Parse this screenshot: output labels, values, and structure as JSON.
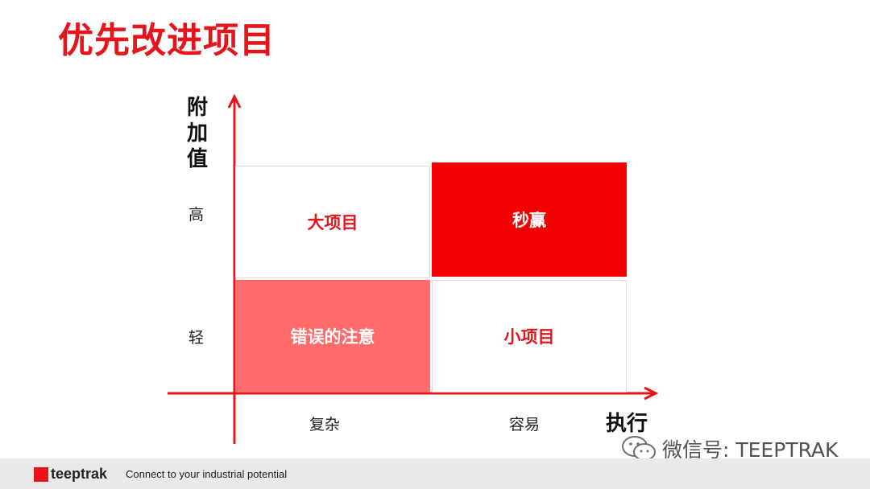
{
  "title": "优先改进项目",
  "axes": {
    "y_title": "附加值",
    "x_title": "执行",
    "y_ticks": [
      "高",
      "轻"
    ],
    "x_ticks": [
      "复杂",
      "容易"
    ]
  },
  "quadrants": {
    "top_left": "大项目",
    "top_right": "秒赢",
    "bottom_left": "错误的注意",
    "bottom_right": "小项目"
  },
  "colors": {
    "accent": "#e8141b",
    "quick_win_fill": "#f40000",
    "mistake_fill": "#ff6b6b"
  },
  "watermark": "微信号: TEEPTRAK",
  "footer": {
    "logo_text": "teeptrak",
    "tagline": "Connect to your industrial potential"
  }
}
